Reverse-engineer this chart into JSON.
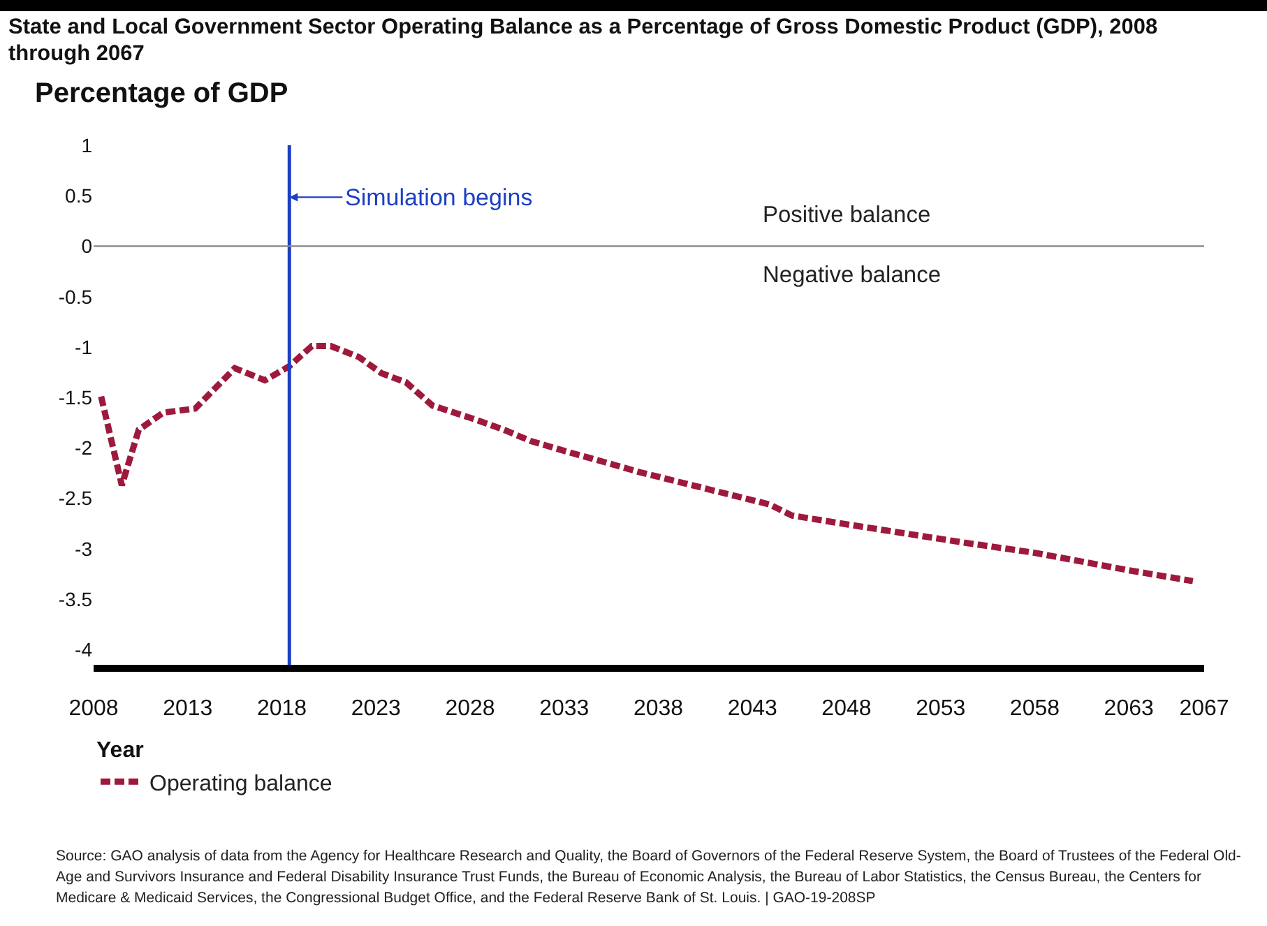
{
  "chart_data": {
    "type": "line",
    "title": "State and Local Government Sector Operating Balance as a Percentage of Gross Domestic Product (GDP), 2008 through 2067",
    "ylabel": "Percentage of GDP",
    "xlabel": "Year",
    "x": [
      2008.4,
      2009.5,
      2010.4,
      2011.7,
      2013.4,
      2015.5,
      2017.1,
      2018.4,
      2019.6,
      2020.6,
      2022.1,
      2023.3,
      2024.6,
      2026.0,
      2028.3,
      2029.8,
      2031.2,
      2033.2,
      2035.7,
      2037.0,
      2043.9,
      2045.1,
      2048.1,
      2054.3,
      2058.0,
      2062.9,
      2066.4
    ],
    "series": [
      {
        "name": "Operating balance",
        "color": "#9e1a3c",
        "values": [
          -1.49,
          -2.37,
          -1.82,
          -1.65,
          -1.61,
          -1.21,
          -1.33,
          -1.19,
          -0.99,
          -0.99,
          -1.1,
          -1.26,
          -1.35,
          -1.58,
          -1.72,
          -1.82,
          -1.93,
          -2.04,
          -2.17,
          -2.24,
          -2.56,
          -2.67,
          -2.76,
          -2.94,
          -3.04,
          -3.21,
          -3.32
        ]
      }
    ],
    "xlim": [
      2008,
      2067
    ],
    "xticks": [
      2008,
      2013,
      2018,
      2023,
      2028,
      2033,
      2038,
      2043,
      2048,
      2053,
      2058,
      2063,
      2067
    ],
    "ylim": [
      -4.15,
      1
    ],
    "yticks": [
      1,
      0.5,
      0,
      -0.5,
      -1,
      -1.5,
      -2,
      -2.5,
      -3,
      -3.5,
      -4
    ],
    "ref_lines": [
      {
        "axis": "x",
        "value": 2018.4,
        "label": "Simulation begins",
        "color": "#1c3fc4"
      },
      {
        "axis": "y",
        "value": 0,
        "color": "#8c8c8c"
      }
    ],
    "annotations": [
      "Positive balance",
      "Negative balance",
      "Source: GAO analysis of data from the Agency for Healthcare Research and Quality, the Board of Governors of the Federal Reserve System, the Board of Trustees of the Federal Old-Age and Survivors Insurance and Federal Disability Insurance Trust Funds, the Bureau of Economic Analysis, the Bureau of Labor Statistics, the Census Bureau, the Centers for Medicare & Medicaid Services, the Congressional Budget Office, and the Federal Reserve Bank of St. Louis. | GAO-19-208SP"
    ],
    "grid": false,
    "legend": "bottom left",
    "marker": "none",
    "line_style": "dashed"
  }
}
